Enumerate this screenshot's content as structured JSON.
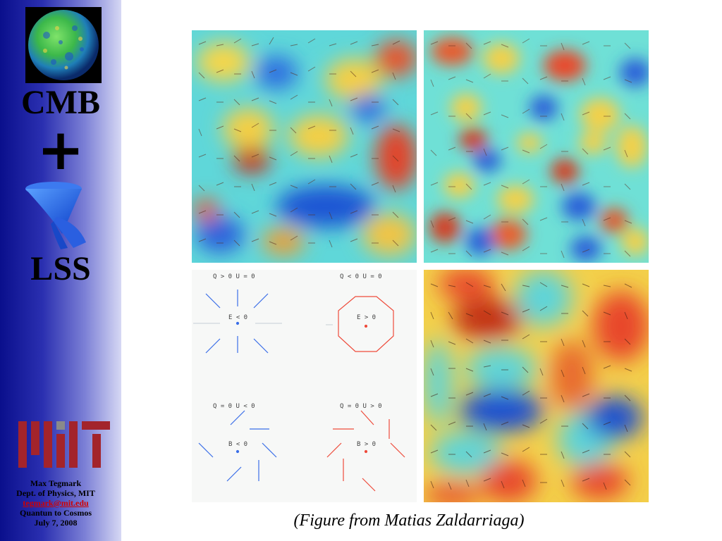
{
  "sidebar": {
    "title_top": "CMB",
    "plus": "+",
    "title_bottom": "LSS",
    "author": {
      "name": "Max Tegmark",
      "dept": "Dept. of Physics, MIT",
      "email": "tegmark@mit.edu",
      "talk": "Quantun to Cosmos",
      "date": "July 7, 2008"
    }
  },
  "diagram": {
    "top_left": {
      "cond": "Q > 0   U = 0",
      "center": "E < 0",
      "color": "#3a6ee8"
    },
    "top_right": {
      "cond": "Q < 0   U = 0",
      "center": "E > 0",
      "color": "#ee4b3b"
    },
    "bottom_left": {
      "cond": "Q = 0   U < 0",
      "center": "B < 0",
      "color": "#3a6ee8"
    },
    "bottom_right": {
      "cond": "Q = 0   U > 0",
      "center": "B > 0",
      "color": "#ee4b3b"
    }
  },
  "caption": "(Figure from Matias Zaldarriaga)"
}
